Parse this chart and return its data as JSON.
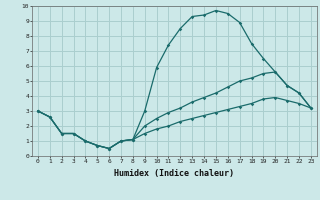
{
  "xlabel": "Humidex (Indice chaleur)",
  "background_color": "#cce8e8",
  "grid_color": "#aacece",
  "line_color": "#1a6b6b",
  "xlim": [
    -0.5,
    23.5
  ],
  "ylim": [
    0,
    10
  ],
  "xticks": [
    0,
    1,
    2,
    3,
    4,
    5,
    6,
    7,
    8,
    9,
    10,
    11,
    12,
    13,
    14,
    15,
    16,
    17,
    18,
    19,
    20,
    21,
    22,
    23
  ],
  "yticks": [
    0,
    1,
    2,
    3,
    4,
    5,
    6,
    7,
    8,
    9,
    10
  ],
  "line1_x": [
    0,
    1,
    2,
    3,
    4,
    5,
    6,
    7,
    8,
    9,
    10,
    11,
    12,
    13,
    14,
    15,
    16,
    17,
    18,
    19,
    20,
    21,
    22,
    23
  ],
  "line1_y": [
    3.0,
    2.6,
    1.5,
    1.5,
    1.0,
    0.7,
    0.5,
    1.0,
    1.1,
    3.0,
    5.9,
    7.4,
    8.5,
    9.3,
    9.4,
    9.7,
    9.5,
    8.9,
    7.5,
    6.5,
    5.6,
    4.7,
    4.2,
    3.2
  ],
  "line2_x": [
    0,
    1,
    2,
    3,
    4,
    5,
    6,
    7,
    8,
    9,
    10,
    11,
    12,
    13,
    14,
    15,
    16,
    17,
    18,
    19,
    20,
    21,
    22,
    23
  ],
  "line2_y": [
    3.0,
    2.6,
    1.5,
    1.5,
    1.0,
    0.7,
    0.5,
    1.0,
    1.1,
    2.0,
    2.5,
    2.9,
    3.2,
    3.6,
    3.9,
    4.2,
    4.6,
    5.0,
    5.2,
    5.5,
    5.6,
    4.7,
    4.2,
    3.2
  ],
  "line3_x": [
    0,
    1,
    2,
    3,
    4,
    5,
    6,
    7,
    8,
    9,
    10,
    11,
    12,
    13,
    14,
    15,
    16,
    17,
    18,
    19,
    20,
    21,
    22,
    23
  ],
  "line3_y": [
    3.0,
    2.6,
    1.5,
    1.5,
    1.0,
    0.7,
    0.5,
    1.0,
    1.1,
    1.5,
    1.8,
    2.0,
    2.3,
    2.5,
    2.7,
    2.9,
    3.1,
    3.3,
    3.5,
    3.8,
    3.9,
    3.7,
    3.5,
    3.2
  ]
}
